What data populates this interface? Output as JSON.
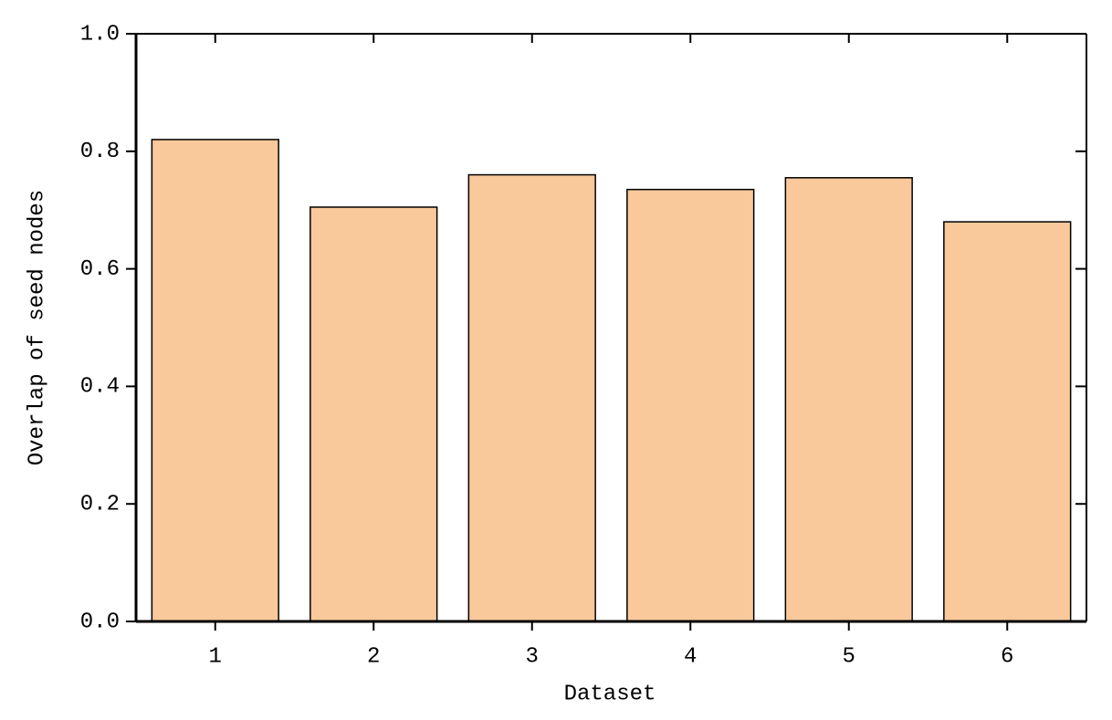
{
  "chart_data": {
    "type": "bar",
    "x_label": "Dataset",
    "y_label": "Overlap of seed nodes",
    "categories": [
      "1",
      "2",
      "3",
      "4",
      "5",
      "6"
    ],
    "values": [
      0.82,
      0.705,
      0.76,
      0.735,
      0.755,
      0.68
    ],
    "color": "#f9c89b",
    "ylim": [
      0,
      1
    ],
    "yticks": [
      {
        "value": 0,
        "label": "0.0"
      },
      0.2,
      0.4,
      0.6,
      0.8,
      {
        "value": 1,
        "label": "1.0"
      }
    ]
  }
}
